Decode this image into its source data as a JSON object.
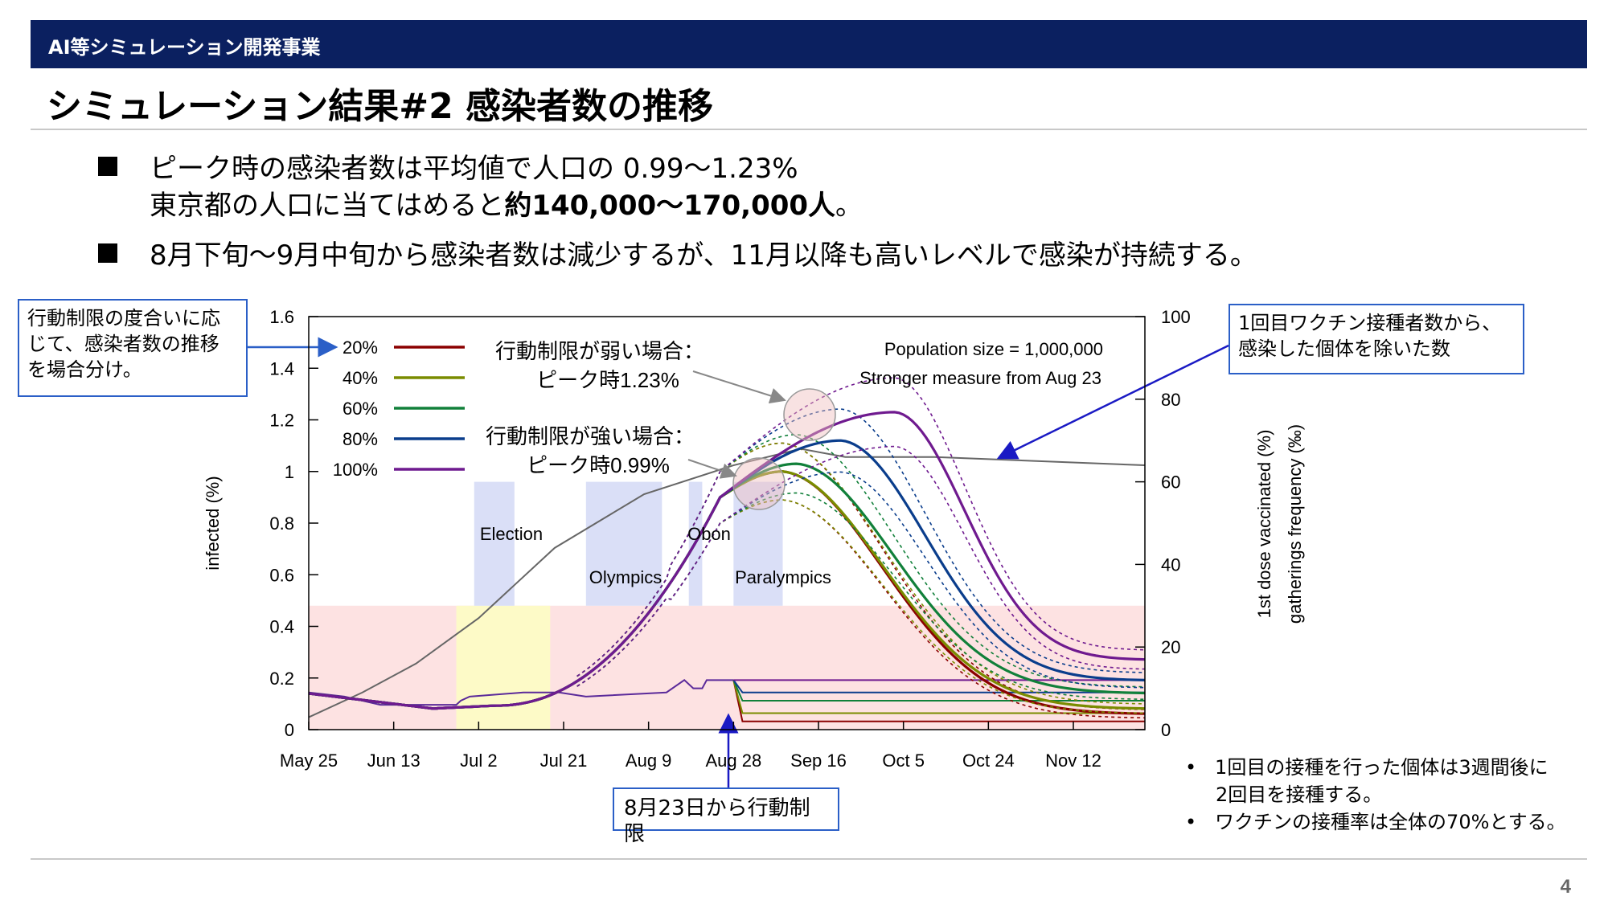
{
  "header": {
    "org": "AI等シミュレーション開発事業",
    "title": "シミュレーション結果#2 感染者数の推移"
  },
  "bullets": [
    {
      "line1": "ピーク時の感染者数は平均値で人口の 0.99〜1.23%",
      "line2_prefix": "東京都の人口に当てはめると",
      "line2_bold": "約140,000〜170,000人",
      "line2_suffix": "。"
    },
    {
      "line1": "8月下旬〜9月中旬から感染者数は減少するが、11月以降も高いレベルで感染が持続する。"
    }
  ],
  "callouts": {
    "left": "行動制限の度合いに応じて、感染者数の推移を場合分け。",
    "right": "1回目ワクチン接種者数から、感染した個体を除いた数",
    "bottom": "8月23日から行動制限"
  },
  "footnotes": [
    "1回目の接種を行った個体は3週間後に",
    "2回目を接種する。",
    "ワクチンの接種率は全体の70%とする。"
  ],
  "page_number": "4",
  "chart_data": {
    "type": "line",
    "ylabel": "infected (%)",
    "y2label_1": "1st dose vaccinated (%)",
    "y2label_2": "gatherings frequency (‰)",
    "ylim": [
      0,
      1.6
    ],
    "y2lim": [
      0,
      100
    ],
    "yticks": [
      "0",
      "0.2",
      "0.4",
      "0.6",
      "0.8",
      "1",
      "1.2",
      "1.4",
      "1.6"
    ],
    "y2ticks": [
      "0",
      "20",
      "40",
      "60",
      "80",
      "100"
    ],
    "xticks": [
      "May 25",
      "Jun 13",
      "Jul 2",
      "Jul 21",
      "Aug 9",
      "Aug 28",
      "Sep 16",
      "Oct 5",
      "Oct 24",
      "Nov 12"
    ],
    "annotations": {
      "population": "Population size = 1,000,000",
      "measure": "Stronger measure from Aug 23",
      "weak_1": "行動制限が弱い場合：",
      "weak_2": "ピーク時1.23%",
      "strong_1": "行動制限が強い場合：",
      "strong_2": "ピーク時0.99%"
    },
    "events": [
      "Election",
      "Olympics",
      "Obon",
      "Paralympics"
    ],
    "series": [
      {
        "name": "20%",
        "color": "#8b0000",
        "peak": 1.0,
        "end": 0.06
      },
      {
        "name": "40%",
        "color": "#7a8c00",
        "peak": 1.0,
        "end": 0.08
      },
      {
        "name": "60%",
        "color": "#11803a",
        "peak": 1.03,
        "end": 0.14
      },
      {
        "name": "80%",
        "color": "#0a3d8c",
        "peak": 1.12,
        "end": 0.19
      },
      {
        "name": "100%",
        "color": "#6f1a8f",
        "peak": 1.23,
        "end": 0.27
      }
    ]
  }
}
